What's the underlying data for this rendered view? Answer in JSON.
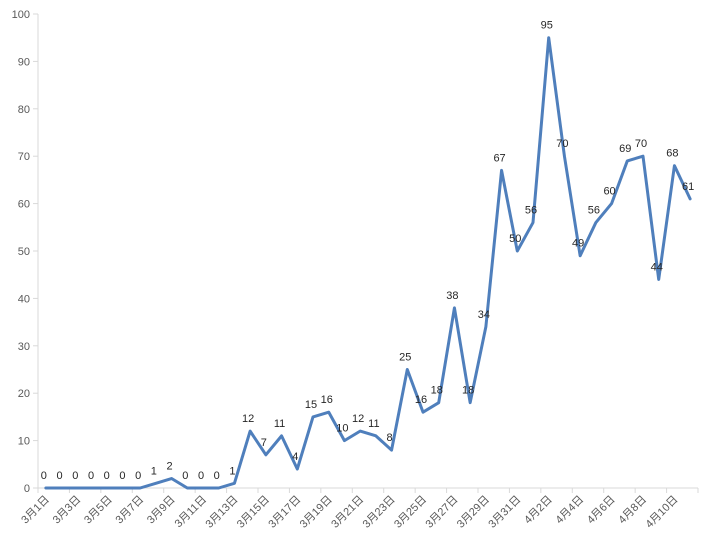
{
  "chart_data": {
    "type": "line",
    "title": "",
    "xlabel": "",
    "ylabel": "",
    "ylim": [
      0,
      100
    ],
    "yticks": [
      0,
      10,
      20,
      30,
      40,
      50,
      60,
      70,
      80,
      90,
      100
    ],
    "grid": false,
    "legend": "none",
    "line_color": "#4f7fbc",
    "x": [
      "3月1日",
      "3月2日",
      "3月3日",
      "3月4日",
      "3月5日",
      "3月6日",
      "3月7日",
      "3月8日",
      "3月9日",
      "3月10日",
      "3月11日",
      "3月12日",
      "3月13日",
      "3月14日",
      "3月15日",
      "3月16日",
      "3月17日",
      "3月18日",
      "3月19日",
      "3月20日",
      "3月21日",
      "3月22日",
      "3月23日",
      "3月24日",
      "3月25日",
      "3月26日",
      "3月27日",
      "3月28日",
      "3月29日",
      "3月30日",
      "3月31日",
      "4月1日",
      "4月2日",
      "4月3日",
      "4月4日",
      "4月5日",
      "4月6日",
      "4月7日",
      "4月8日",
      "4月9日",
      "4月10日",
      "4月11日"
    ],
    "xtick_labels": [
      "3月1日",
      "3月3日",
      "3月5日",
      "3月7日",
      "3月9日",
      "3月11日",
      "3月13日",
      "3月15日",
      "3月17日",
      "3月19日",
      "3月21日",
      "3月23日",
      "3月25日",
      "3月27日",
      "3月29日",
      "3月31日",
      "4月2日",
      "4月4日",
      "4月6日",
      "4月8日",
      "4月10日"
    ],
    "values": [
      0,
      0,
      0,
      0,
      0,
      0,
      0,
      1,
      2,
      0,
      0,
      0,
      1,
      12,
      7,
      11,
      4,
      15,
      16,
      10,
      12,
      11,
      8,
      25,
      16,
      18,
      38,
      18,
      34,
      67,
      50,
      56,
      95,
      70,
      49,
      56,
      60,
      69,
      70,
      44,
      68,
      61
    ]
  }
}
